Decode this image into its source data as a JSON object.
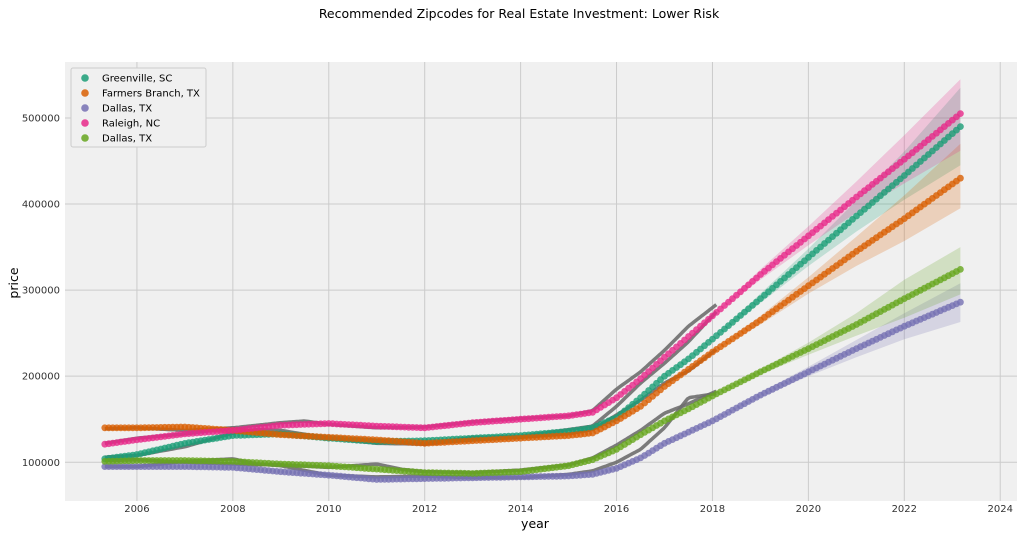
{
  "chart_data": {
    "type": "scatter",
    "title": "Recommended Zipcodes for Real Estate Investment: Lower Risk",
    "xlabel": "year",
    "ylabel": "price",
    "xlim": [
      2004.5,
      2024.35
    ],
    "ylim": [
      55000,
      565000
    ],
    "xticks": [
      2006,
      2008,
      2010,
      2012,
      2014,
      2016,
      2018,
      2020,
      2022,
      2024
    ],
    "yticks": [
      100000,
      200000,
      300000,
      400000,
      500000
    ],
    "grid": true,
    "legend_position": "top-left",
    "background_color": "#f0f0f0",
    "grid_color": "#cbcbcb",
    "actual_line_color": "#6e6e6e",
    "series": [
      {
        "name": "Greenville, SC",
        "color": "#1b9e77",
        "points": [
          [
            2005.33,
            104000
          ],
          [
            2006,
            109000
          ],
          [
            2007,
            122000
          ],
          [
            2008,
            131000
          ],
          [
            2009,
            133000
          ],
          [
            2010,
            128000
          ],
          [
            2011,
            124000
          ],
          [
            2012,
            125000
          ],
          [
            2013,
            128000
          ],
          [
            2014,
            131000
          ],
          [
            2015,
            136000
          ],
          [
            2015.5,
            140000
          ],
          [
            2016,
            152000
          ],
          [
            2016.5,
            175000
          ],
          [
            2017,
            200000
          ],
          [
            2017.5,
            220000
          ],
          [
            2018,
            243000
          ],
          [
            2019,
            290000
          ],
          [
            2020,
            338000
          ],
          [
            2021,
            386000
          ],
          [
            2022,
            433000
          ],
          [
            2023.17,
            490000
          ]
        ],
        "ci": [
          [
            2018,
            243000,
            243000
          ],
          [
            2019,
            285000,
            296000
          ],
          [
            2020,
            328000,
            348000
          ],
          [
            2021,
            368000,
            404000
          ],
          [
            2022,
            405000,
            461000
          ],
          [
            2023.17,
            445000,
            535000
          ]
        ]
      },
      {
        "name": "Farmers Branch, TX",
        "color": "#d95f02",
        "points": [
          [
            2005.33,
            140000
          ],
          [
            2006,
            140000
          ],
          [
            2007,
            141000
          ],
          [
            2008,
            137000
          ],
          [
            2009,
            132000
          ],
          [
            2010,
            129000
          ],
          [
            2011,
            126000
          ],
          [
            2012,
            122000
          ],
          [
            2013,
            125000
          ],
          [
            2014,
            128000
          ],
          [
            2015,
            131000
          ],
          [
            2015.5,
            134000
          ],
          [
            2016,
            148000
          ],
          [
            2016.5,
            165000
          ],
          [
            2017,
            188000
          ],
          [
            2017.5,
            208000
          ],
          [
            2018,
            228000
          ],
          [
            2019,
            265000
          ],
          [
            2020,
            305000
          ],
          [
            2021,
            345000
          ],
          [
            2022,
            383000
          ],
          [
            2023.17,
            430000
          ]
        ],
        "ci": [
          [
            2018,
            228000,
            228000
          ],
          [
            2019,
            260000,
            270000
          ],
          [
            2020,
            296000,
            315000
          ],
          [
            2021,
            328000,
            362000
          ],
          [
            2022,
            357000,
            410000
          ],
          [
            2023.17,
            395000,
            470000
          ]
        ]
      },
      {
        "name": "Dallas, TX",
        "color": "#7570b3",
        "points": [
          [
            2005.33,
            95000
          ],
          [
            2006,
            95000
          ],
          [
            2007,
            95000
          ],
          [
            2008,
            94000
          ],
          [
            2009,
            89000
          ],
          [
            2010,
            85000
          ],
          [
            2011,
            80000
          ],
          [
            2012,
            81000
          ],
          [
            2013,
            82000
          ],
          [
            2014,
            83000
          ],
          [
            2015,
            84000
          ],
          [
            2015.5,
            86000
          ],
          [
            2016,
            93000
          ],
          [
            2016.5,
            105000
          ],
          [
            2017,
            122000
          ],
          [
            2017.5,
            135000
          ],
          [
            2018,
            148000
          ],
          [
            2019,
            178000
          ],
          [
            2020,
            205000
          ],
          [
            2021,
            232000
          ],
          [
            2022,
            258000
          ],
          [
            2023.17,
            286000
          ]
        ],
        "ci": [
          [
            2018,
            148000,
            148000
          ],
          [
            2019,
            175000,
            181000
          ],
          [
            2020,
            200000,
            211000
          ],
          [
            2021,
            222000,
            242000
          ],
          [
            2022,
            243000,
            273000
          ],
          [
            2023.17,
            263000,
            308000
          ]
        ]
      },
      {
        "name": "Raleigh, NC",
        "color": "#e7298a",
        "points": [
          [
            2005.33,
            121000
          ],
          [
            2006,
            126000
          ],
          [
            2007,
            133000
          ],
          [
            2008,
            137000
          ],
          [
            2009,
            143000
          ],
          [
            2010,
            145000
          ],
          [
            2011,
            142000
          ],
          [
            2012,
            140000
          ],
          [
            2013,
            146000
          ],
          [
            2014,
            150000
          ],
          [
            2015,
            154000
          ],
          [
            2015.5,
            158000
          ],
          [
            2016,
            175000
          ],
          [
            2016.5,
            197000
          ],
          [
            2017,
            222000
          ],
          [
            2017.5,
            246000
          ],
          [
            2018,
            270000
          ],
          [
            2019,
            318000
          ],
          [
            2020,
            363000
          ],
          [
            2021,
            408000
          ],
          [
            2022,
            452000
          ],
          [
            2023.17,
            505000
          ]
        ],
        "ci": [
          [
            2018,
            270000,
            270000
          ],
          [
            2019,
            312000,
            324000
          ],
          [
            2020,
            352000,
            374000
          ],
          [
            2021,
            390000,
            426000
          ],
          [
            2022,
            424000,
            480000
          ],
          [
            2023.17,
            462000,
            545000
          ]
        ]
      },
      {
        "name": "Dallas, TX",
        "color": "#66a61e",
        "points": [
          [
            2005.33,
            101000
          ],
          [
            2006,
            102000
          ],
          [
            2007,
            102000
          ],
          [
            2008,
            101000
          ],
          [
            2009,
            98000
          ],
          [
            2010,
            96000
          ],
          [
            2011,
            92000
          ],
          [
            2012,
            88000
          ],
          [
            2013,
            87000
          ],
          [
            2014,
            89000
          ],
          [
            2015,
            96000
          ],
          [
            2015.5,
            103000
          ],
          [
            2016,
            115000
          ],
          [
            2016.5,
            132000
          ],
          [
            2017,
            148000
          ],
          [
            2017.5,
            162000
          ],
          [
            2018,
            177000
          ],
          [
            2019,
            205000
          ],
          [
            2020,
            232000
          ],
          [
            2021,
            260000
          ],
          [
            2022,
            290000
          ],
          [
            2023.17,
            324000
          ]
        ],
        "ci": [
          [
            2018,
            177000,
            177000
          ],
          [
            2019,
            202000,
            208000
          ],
          [
            2020,
            225000,
            239000
          ],
          [
            2021,
            247000,
            273000
          ],
          [
            2022,
            268000,
            312000
          ],
          [
            2023.17,
            295000,
            350000
          ]
        ]
      }
    ],
    "actual": [
      [
        [
          2005.33,
          106000
        ],
        [
          2006,
          108000
        ],
        [
          2007,
          118000
        ],
        [
          2008,
          134000
        ],
        [
          2008.5,
          138000
        ],
        [
          2009,
          137000
        ],
        [
          2010,
          128000
        ],
        [
          2011,
          122000
        ],
        [
          2012,
          121000
        ],
        [
          2013,
          129000
        ],
        [
          2014,
          130000
        ],
        [
          2015,
          138000
        ],
        [
          2015.5,
          142000
        ],
        [
          2016,
          165000
        ],
        [
          2016.5,
          192000
        ],
        [
          2017,
          215000
        ],
        [
          2017.5,
          240000
        ],
        [
          2018.1,
          276000
        ]
      ],
      [
        [
          2005.33,
          139000
        ],
        [
          2006,
          140000
        ],
        [
          2007,
          137000
        ],
        [
          2008,
          140000
        ],
        [
          2008.5,
          135000
        ],
        [
          2009,
          133000
        ],
        [
          2010,
          127000
        ],
        [
          2011,
          125000
        ],
        [
          2012,
          121000
        ],
        [
          2013,
          126000
        ],
        [
          2014,
          129000
        ],
        [
          2015,
          133000
        ],
        [
          2015.5,
          138000
        ],
        [
          2016,
          155000
        ],
        [
          2016.5,
          172000
        ],
        [
          2017,
          192000
        ],
        [
          2017.5,
          206000
        ],
        [
          2018.1,
          232000
        ]
      ],
      [
        [
          2005.33,
          95000
        ],
        [
          2006,
          95000
        ],
        [
          2007,
          101000
        ],
        [
          2008,
          104000
        ],
        [
          2008.5,
          98000
        ],
        [
          2009,
          96000
        ],
        [
          2010,
          85000
        ],
        [
          2011,
          83000
        ],
        [
          2012,
          84000
        ],
        [
          2013,
          82000
        ],
        [
          2014,
          82000
        ],
        [
          2015,
          86000
        ],
        [
          2015.5,
          90000
        ],
        [
          2016,
          100000
        ],
        [
          2016.5,
          115000
        ],
        [
          2017,
          140000
        ],
        [
          2017.5,
          175000
        ],
        [
          2018.1,
          180000
        ]
      ],
      [
        [
          2005.33,
          122000
        ],
        [
          2006,
          128000
        ],
        [
          2007,
          133000
        ],
        [
          2008,
          140000
        ],
        [
          2008.5,
          143000
        ],
        [
          2009,
          146000
        ],
        [
          2009.5,
          148000
        ],
        [
          2010,
          144000
        ],
        [
          2011,
          140000
        ],
        [
          2012,
          141000
        ],
        [
          2013,
          147000
        ],
        [
          2014,
          151000
        ],
        [
          2015,
          154000
        ],
        [
          2015.5,
          160000
        ],
        [
          2016,
          185000
        ],
        [
          2016.5,
          205000
        ],
        [
          2017,
          230000
        ],
        [
          2017.5,
          258000
        ],
        [
          2018.1,
          284000
        ]
      ],
      [
        [
          2005.33,
          102000
        ],
        [
          2006,
          103000
        ],
        [
          2007,
          100000
        ],
        [
          2008,
          98000
        ],
        [
          2008.5,
          97000
        ],
        [
          2009,
          97000
        ],
        [
          2010,
          94000
        ],
        [
          2011,
          98000
        ],
        [
          2011.5,
          92000
        ],
        [
          2012,
          89000
        ],
        [
          2013,
          88000
        ],
        [
          2014,
          91000
        ],
        [
          2015,
          97000
        ],
        [
          2015.5,
          105000
        ],
        [
          2016,
          120000
        ],
        [
          2016.5,
          137000
        ],
        [
          2017,
          157000
        ],
        [
          2017.5,
          168000
        ],
        [
          2018.1,
          183000
        ]
      ]
    ]
  }
}
